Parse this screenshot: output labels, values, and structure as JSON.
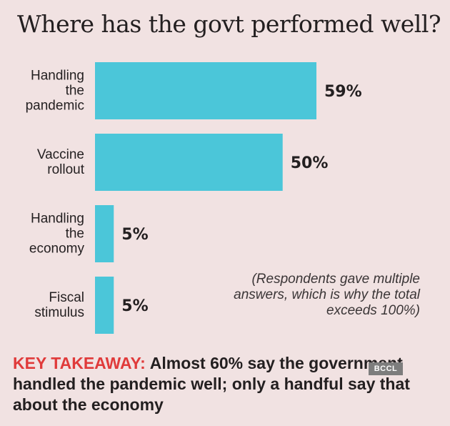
{
  "title": "Where has the govt performed well?",
  "chart_data": {
    "type": "bar",
    "orientation": "horizontal",
    "title": "Where has the govt performed well?",
    "categories": [
      [
        "Handling",
        "the",
        "pandemic"
      ],
      [
        "Vaccine",
        "rollout"
      ],
      [
        "Handling",
        "the",
        "economy"
      ],
      [
        "Fiscal",
        "stimulus"
      ]
    ],
    "values": [
      59,
      50,
      5,
      5
    ],
    "value_labels": [
      "59%",
      "50%",
      "5%",
      "5%"
    ],
    "unit": "%",
    "xlim": [
      0,
      60
    ],
    "grid": false,
    "bar_color": "#4bc6d9"
  },
  "note": "(Respondents gave multiple answers, which is why the total exceeds 100%)",
  "takeaway": {
    "key": "KEY TAKEAWAY:",
    "text": "Almost 60% say the government handled the pandemic well; only a handful say that about the economy"
  },
  "badge": "BCCL",
  "colors": {
    "background": "#f1e2e2",
    "bar": "#4bc6d9",
    "key_label": "#e03a3a",
    "text": "#231f20"
  }
}
